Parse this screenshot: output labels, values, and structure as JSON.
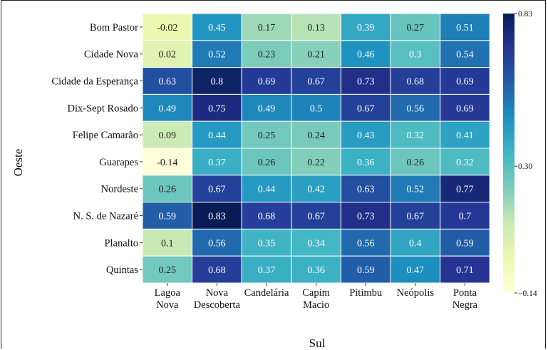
{
  "chart_data": {
    "type": "heatmap",
    "xlabel": "Sul",
    "ylabel": "Oeste",
    "x_categories": [
      [
        "Lagoa",
        "Nova"
      ],
      [
        "Nova",
        "Descoberta"
      ],
      [
        "Candelária"
      ],
      [
        "Capim",
        "Macio"
      ],
      [
        "Pitimbu"
      ],
      [
        "Neópolis"
      ],
      [
        "Ponta",
        "Negra"
      ]
    ],
    "y_categories": [
      "Bom Pastor",
      "Cidade Nova",
      "Cidade da Esperança",
      "Dix-Sept Rosado",
      "Felipe Camarão",
      "Guarapes",
      "Nordeste",
      "N. S. de Nazaré",
      "Planalto",
      "Quintas"
    ],
    "values": [
      [
        -0.02,
        0.45,
        0.17,
        0.13,
        0.39,
        0.27,
        0.51
      ],
      [
        0.02,
        0.52,
        0.23,
        0.21,
        0.46,
        0.3,
        0.54
      ],
      [
        0.63,
        0.8,
        0.69,
        0.67,
        0.73,
        0.68,
        0.69
      ],
      [
        0.49,
        0.75,
        0.49,
        0.5,
        0.67,
        0.56,
        0.69
      ],
      [
        0.09,
        0.44,
        0.25,
        0.24,
        0.43,
        0.32,
        0.41
      ],
      [
        -0.14,
        0.37,
        0.26,
        0.22,
        0.36,
        0.26,
        0.32
      ],
      [
        0.26,
        0.67,
        0.44,
        0.42,
        0.63,
        0.52,
        0.77
      ],
      [
        0.59,
        0.83,
        0.68,
        0.67,
        0.73,
        0.67,
        0.7
      ],
      [
        0.1,
        0.56,
        0.35,
        0.34,
        0.56,
        0.4,
        0.59
      ],
      [
        0.25,
        0.68,
        0.37,
        0.36,
        0.59,
        0.47,
        0.71
      ]
    ],
    "colorscale": "YlGnBu",
    "vmin": -0.14,
    "vmax": 0.83,
    "colorbar_ticks": [
      0.83,
      0.3,
      -0.14
    ],
    "colorbar_tick_labels": [
      "0.83",
      "0.30",
      "−0.14"
    ]
  }
}
